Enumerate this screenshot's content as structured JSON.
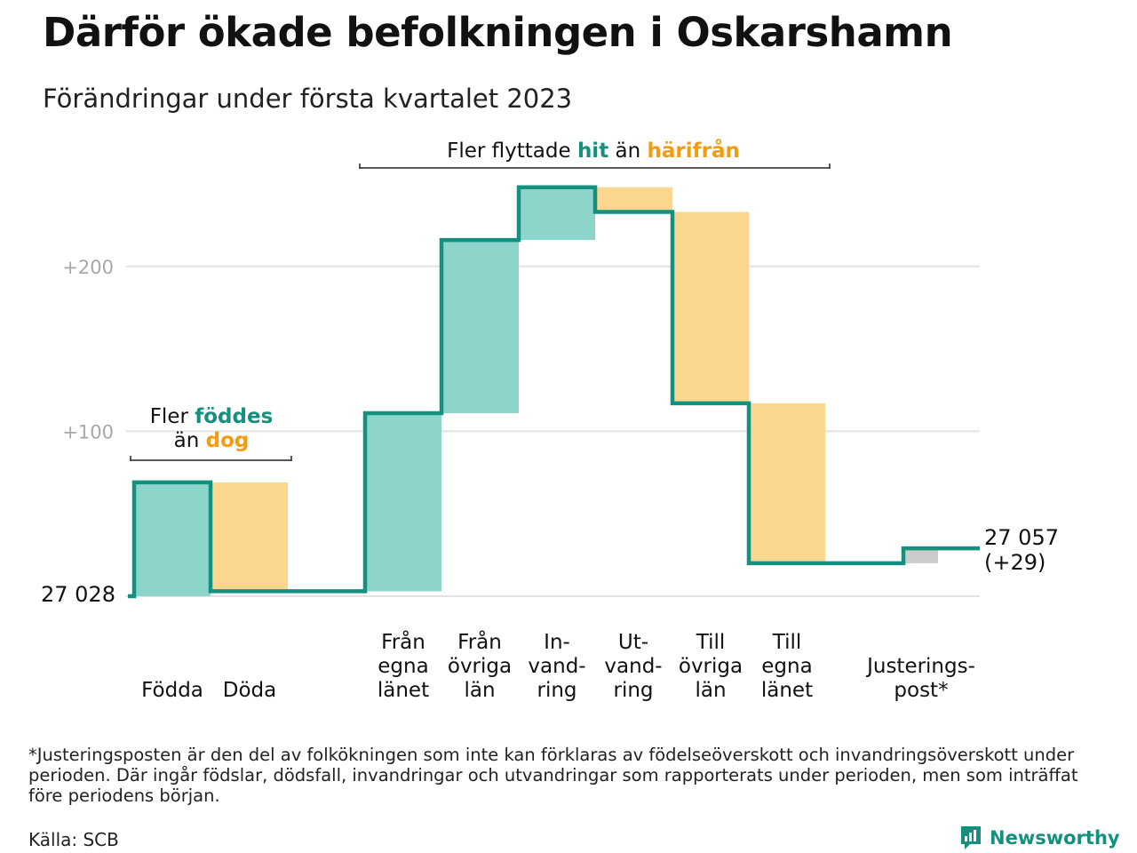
{
  "title": "Därför ökade befolkningen i Oskarshamn",
  "subtitle": "Förändringar under första kvartalet 2023",
  "chart_data": {
    "type": "waterfall",
    "baseline_label": "27 028",
    "end_label_line1": "27 057",
    "end_label_line2": "(+29)",
    "ylim": [
      0,
      250
    ],
    "yticks": [
      {
        "value": 100,
        "label": "+100"
      },
      {
        "value": 200,
        "label": "+200"
      }
    ],
    "grid": true,
    "steps": [
      {
        "category_lines": [
          "Födda"
        ],
        "from": 0,
        "to": 69,
        "kind": "increase"
      },
      {
        "category_lines": [
          "Döda"
        ],
        "from": 69,
        "to": 3,
        "kind": "decrease"
      },
      {
        "category_lines": [
          "Från",
          "egna",
          "länet"
        ],
        "from": 3,
        "to": 111,
        "kind": "increase"
      },
      {
        "category_lines": [
          "Från",
          "övriga",
          "län"
        ],
        "from": 111,
        "to": 216,
        "kind": "increase"
      },
      {
        "category_lines": [
          "In-",
          "vand-",
          "ring"
        ],
        "from": 216,
        "to": 248,
        "kind": "increase"
      },
      {
        "category_lines": [
          "Ut-",
          "vand-",
          "ring"
        ],
        "from": 248,
        "to": 233,
        "kind": "decrease"
      },
      {
        "category_lines": [
          "Till",
          "övriga",
          "län"
        ],
        "from": 233,
        "to": 117,
        "kind": "decrease"
      },
      {
        "category_lines": [
          "Till",
          "egna",
          "länet"
        ],
        "from": 117,
        "to": 20,
        "kind": "decrease"
      },
      {
        "category_lines": [
          "Justerings-",
          "post*"
        ],
        "from": 20,
        "to": 29,
        "kind": "adjustment"
      }
    ],
    "annotations": {
      "births": {
        "line1_prefix": "Fler ",
        "line1_highlight": "föddes",
        "line2_prefix": "än ",
        "line2_highlight": "dog"
      },
      "migration": {
        "prefix": "Fler flyttade ",
        "highlight1": "hit",
        "middle": " än ",
        "highlight2": "härifrån"
      }
    },
    "colors": {
      "increase_fill": "#8dd5cb",
      "decrease_fill": "#fad68e",
      "adjustment_fill": "#cccccc",
      "step_line": "#14907f",
      "teal_text": "#14907f",
      "orange_text": "#f39c12",
      "grid": "#e3e3e3",
      "tick_text": "#a8a8a8"
    }
  },
  "footnote": "*Justeringsposten är den del av folkökningen som inte kan förklaras av födelseöverskott och invandringsöverskott under perioden. Där ingår födslar, dödsfall, invandringar och utvandringar som rapporterats under perioden, men som inträffat före periodens början.",
  "source": "Källa: SCB",
  "brand": {
    "name": "Newsworthy",
    "icon": "newsworthy-logo-icon"
  }
}
